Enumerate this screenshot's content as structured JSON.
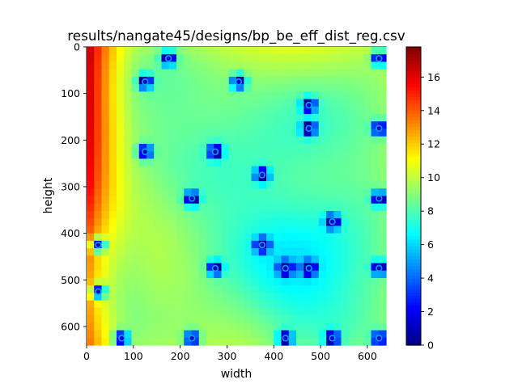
{
  "chart_data": {
    "type": "heatmap",
    "title": "results/nangate45/designs/bp_be_eff_dist_reg.csv",
    "xlabel": "width",
    "ylabel": "height",
    "xlim": [
      0,
      640
    ],
    "ylim": [
      640,
      0
    ],
    "x_ticks": [
      0,
      100,
      200,
      300,
      400,
      500,
      600
    ],
    "y_ticks": [
      0,
      100,
      200,
      300,
      400,
      500,
      600
    ],
    "colormap": "jet",
    "colorbar": {
      "range": [
        0,
        17.8
      ],
      "ticks": [
        0,
        2,
        4,
        6,
        8,
        10,
        12,
        14,
        16
      ]
    },
    "minima_points": [
      [
        175,
        25
      ],
      [
        625,
        25
      ],
      [
        125,
        75
      ],
      [
        325,
        75
      ],
      [
        475,
        125
      ],
      [
        475,
        175
      ],
      [
        625,
        175
      ],
      [
        125,
        225
      ],
      [
        275,
        225
      ],
      [
        375,
        275
      ],
      [
        225,
        325
      ],
      [
        625,
        325
      ],
      [
        525,
        375
      ],
      [
        25,
        425
      ],
      [
        375,
        425
      ],
      [
        275,
        475
      ],
      [
        425,
        475
      ],
      [
        475,
        475
      ],
      [
        625,
        475
      ],
      [
        25,
        525
      ],
      [
        75,
        625
      ],
      [
        225,
        625
      ],
      [
        425,
        625
      ],
      [
        525,
        625
      ],
      [
        625,
        625
      ]
    ]
  }
}
